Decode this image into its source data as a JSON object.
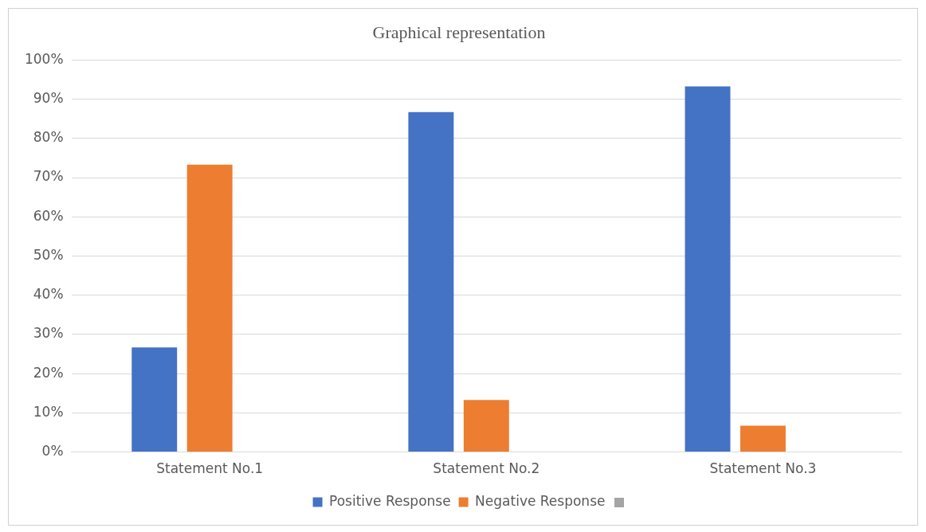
{
  "chart_data": {
    "type": "bar",
    "title": "Graphical representation",
    "categories": [
      "Statement No.1",
      "Statement No.2",
      "Statement No.3"
    ],
    "series": [
      {
        "name": "Positive Response",
        "color": "#4472c4",
        "values": [
          26.7,
          86.7,
          93.3
        ]
      },
      {
        "name": "Negative Response",
        "color": "#ed7d31",
        "values": [
          73.3,
          13.3,
          6.7
        ]
      },
      {
        "color": "#a5a5a5",
        "values": [
          null,
          null,
          null
        ]
      }
    ],
    "ylim": [
      0,
      100
    ],
    "yticks": [
      {
        "value": 0,
        "label": "0%"
      },
      {
        "value": 10,
        "label": "10%"
      },
      {
        "value": 20,
        "label": "20%"
      },
      {
        "value": 30,
        "label": "30%"
      },
      {
        "value": 40,
        "label": "40%"
      },
      {
        "value": 50,
        "label": "50%"
      },
      {
        "value": 60,
        "label": "60%"
      },
      {
        "value": 70,
        "label": "70%"
      },
      {
        "value": 80,
        "label": "80%"
      },
      {
        "value": 90,
        "label": "90%"
      },
      {
        "value": 100,
        "label": "100%"
      }
    ],
    "grid": "y",
    "legend": "bottom"
  }
}
